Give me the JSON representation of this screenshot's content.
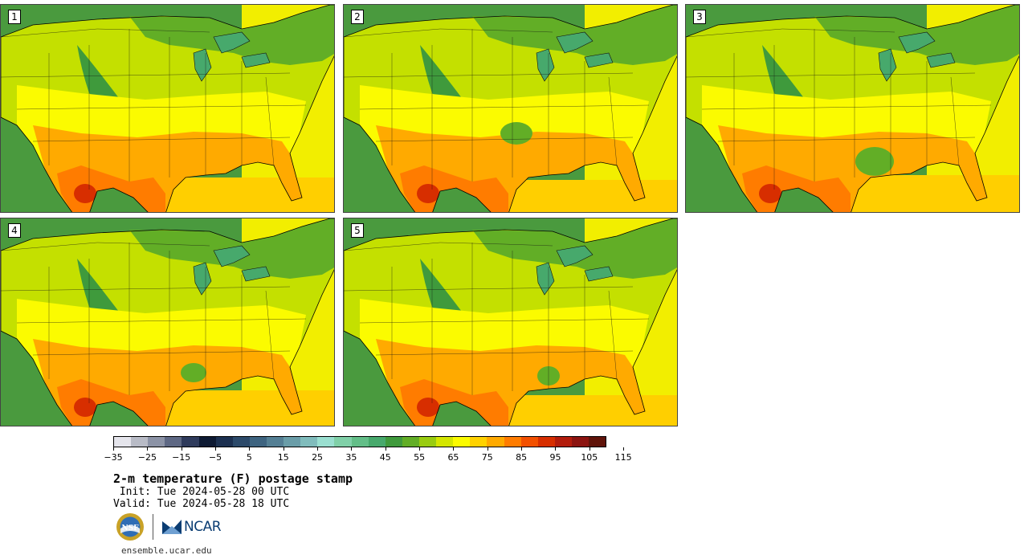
{
  "stamps": [
    {
      "label": "1",
      "variant": 0
    },
    {
      "label": "2",
      "variant": 1
    },
    {
      "label": "3",
      "variant": 2
    },
    {
      "label": "4",
      "variant": 3
    },
    {
      "label": "5",
      "variant": 4
    }
  ],
  "colorbar": {
    "tick_labels": [
      "−35",
      "−25",
      "−15",
      "−5",
      "5",
      "15",
      "25",
      "35",
      "45",
      "55",
      "65",
      "75",
      "85",
      "95",
      "105",
      "115"
    ],
    "colors": [
      "#e5e5ec",
      "#b8bbc6",
      "#8c93a6",
      "#5e6884",
      "#2f3b5c",
      "#0e1a33",
      "#1c3050",
      "#2c4a6a",
      "#3e6480",
      "#547f94",
      "#6a9da8",
      "#80bcbc",
      "#9adfd0",
      "#80d0a8",
      "#63be88",
      "#47a96c",
      "#3f9a3c",
      "#62ae26",
      "#99cc10",
      "#d4e600",
      "#fbfb00",
      "#ffd200",
      "#ffaa00",
      "#ff7c00",
      "#f25000",
      "#d72e00",
      "#b21c0c",
      "#8c1410",
      "#60140a"
    ]
  },
  "title": "2-m temperature (F) postage stamp",
  "init": " Init: Tue 2024-05-28 00 UTC",
  "valid": "Valid: Tue 2024-05-28 18 UTC",
  "logo": {
    "nsf_text": "NSF",
    "ncar_text": "NCAR"
  },
  "url": "ensemble.ucar.edu",
  "map_palette": {
    "ocean_pacific": "#4a9a3e",
    "ocean_atlantic": "#f2ee00",
    "gulf": "#ffcf00",
    "cold_north": "#3f9a3c",
    "cool": "#62ae26",
    "mild": "#c4e000",
    "warm": "#fbfb00",
    "hot": "#ffaa00",
    "hotter": "#ff7c00",
    "hottest": "#d72e00",
    "lakes": "#47a96c"
  }
}
